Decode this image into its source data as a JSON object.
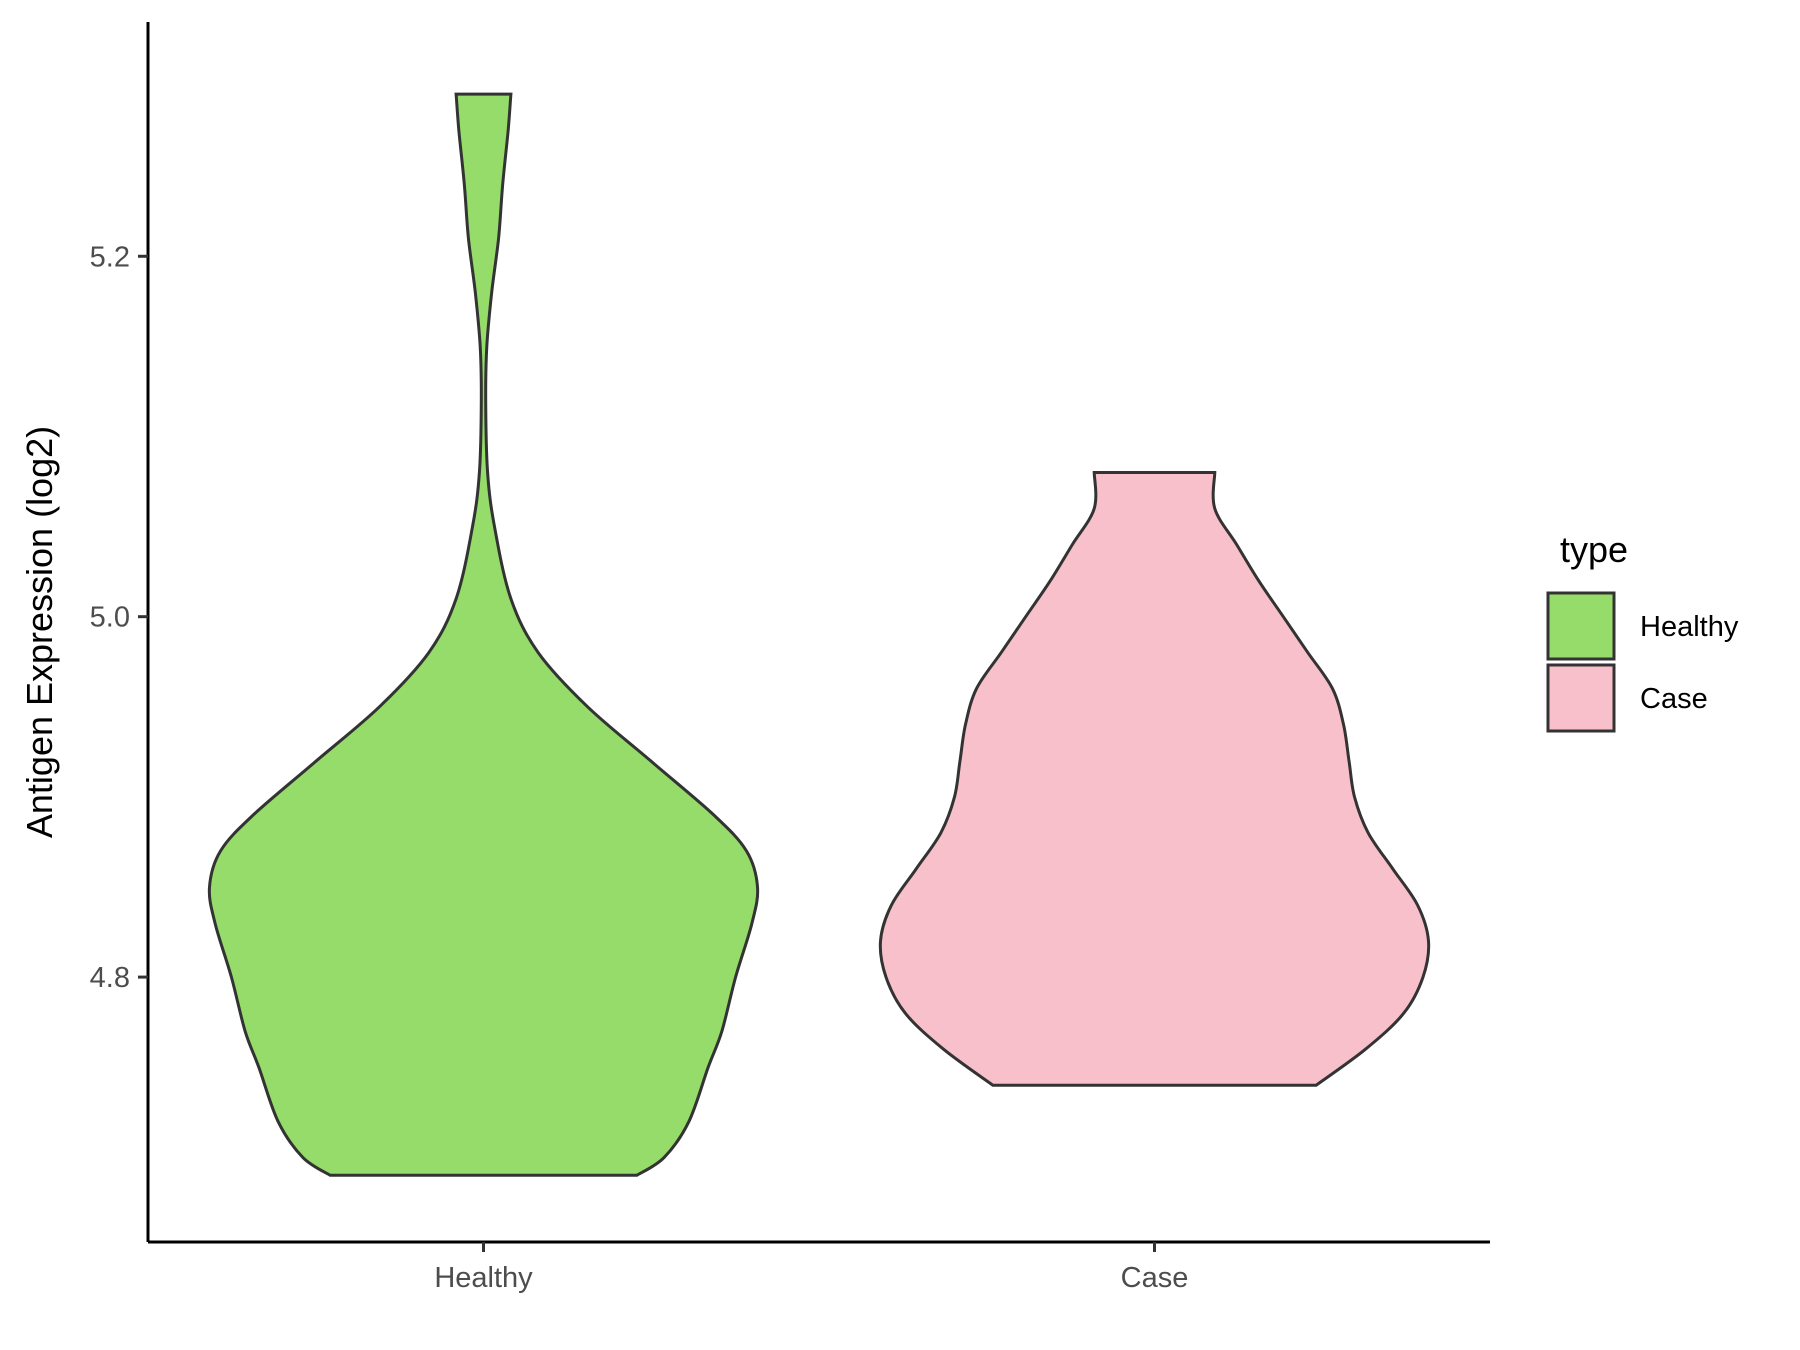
{
  "chart_data": {
    "type": "violin",
    "ylabel": "Antigen Expression (log2)",
    "xlabel": "",
    "categories": [
      "Healthy",
      "Case"
    ],
    "ylim": [
      4.653,
      5.33
    ],
    "yticks": [
      4.8,
      5.0,
      5.2
    ],
    "ytick_labels": [
      "4.8",
      "5.0",
      "5.2"
    ],
    "grid": false,
    "legend": {
      "title": "type",
      "placement": "right",
      "entries": [
        {
          "label": "Healthy",
          "color": "#95DC6A"
        },
        {
          "label": "Case",
          "color": "#F7C0CB"
        }
      ]
    },
    "series": [
      {
        "category": "Healthy",
        "color": "#95DC6A",
        "min": 4.69,
        "max": 5.29,
        "density_width": [
          [
            4.69,
            0.56
          ],
          [
            4.7,
            0.66
          ],
          [
            4.72,
            0.75
          ],
          [
            4.75,
            0.82
          ],
          [
            4.77,
            0.87
          ],
          [
            4.8,
            0.92
          ],
          [
            4.83,
            0.98
          ],
          [
            4.85,
            1.0
          ],
          [
            4.87,
            0.96
          ],
          [
            4.89,
            0.84
          ],
          [
            4.92,
            0.61
          ],
          [
            4.95,
            0.38
          ],
          [
            4.98,
            0.2
          ],
          [
            5.01,
            0.1
          ],
          [
            5.05,
            0.04
          ],
          [
            5.08,
            0.015
          ],
          [
            5.12,
            0.008
          ],
          [
            5.15,
            0.012
          ],
          [
            5.18,
            0.03
          ],
          [
            5.21,
            0.055
          ],
          [
            5.24,
            0.07
          ],
          [
            5.27,
            0.09
          ],
          [
            5.29,
            0.1
          ]
        ]
      },
      {
        "category": "Case",
        "color": "#F7C0CB",
        "min": 4.74,
        "max": 5.08,
        "density_width": [
          [
            4.74,
            0.59
          ],
          [
            4.76,
            0.77
          ],
          [
            4.78,
            0.91
          ],
          [
            4.8,
            0.98
          ],
          [
            4.82,
            1.0
          ],
          [
            4.84,
            0.96
          ],
          [
            4.86,
            0.87
          ],
          [
            4.88,
            0.78
          ],
          [
            4.9,
            0.73
          ],
          [
            4.92,
            0.71
          ],
          [
            4.94,
            0.69
          ],
          [
            4.96,
            0.65
          ],
          [
            4.98,
            0.56
          ],
          [
            5.0,
            0.47
          ],
          [
            5.02,
            0.38
          ],
          [
            5.04,
            0.3
          ],
          [
            5.06,
            0.22
          ],
          [
            5.08,
            0.22
          ]
        ]
      }
    ]
  }
}
